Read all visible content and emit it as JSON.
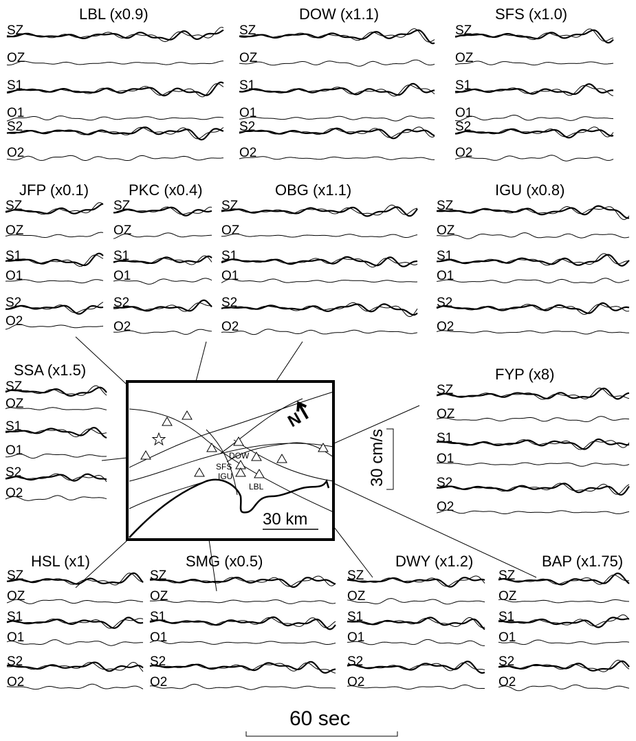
{
  "panels": [
    {
      "id": "LBL",
      "title": "LBL (x0.9)",
      "channels": [
        "SZ",
        "OZ",
        "S1",
        "O1",
        "S2",
        "O2"
      ]
    },
    {
      "id": "DOW",
      "title": "DOW (x1.1)",
      "channels": [
        "SZ",
        "OZ",
        "S1",
        "O1",
        "S2",
        "O2"
      ]
    },
    {
      "id": "SFS",
      "title": "SFS (x1.0)",
      "channels": [
        "SZ",
        "OZ",
        "S1",
        "O1",
        "S2",
        "O2"
      ]
    },
    {
      "id": "JFP",
      "title": "JFP (x0.1)",
      "channels": [
        "SZ",
        "OZ",
        "S1",
        "O1",
        "S2",
        "O2"
      ]
    },
    {
      "id": "PKC",
      "title": "PKC (x0.4)",
      "channels": [
        "SZ",
        "OZ",
        "S1",
        "O1",
        "S2",
        "O2"
      ]
    },
    {
      "id": "OBG",
      "title": "OBG (x1.1)",
      "channels": [
        "SZ",
        "OZ",
        "S1",
        "O1",
        "S2",
        "O2"
      ]
    },
    {
      "id": "IGU",
      "title": "IGU (x0.8)",
      "channels": [
        "SZ",
        "OZ",
        "S1",
        "O1",
        "S2",
        "O2"
      ]
    },
    {
      "id": "SSA",
      "title": "SSA (x1.5)",
      "channels": [
        "SZ",
        "OZ",
        "S1",
        "O1",
        "S2",
        "O2"
      ]
    },
    {
      "id": "FYP",
      "title": "FYP (x8)",
      "channels": [
        "SZ",
        "OZ",
        "S1",
        "O1",
        "S2",
        "O2"
      ]
    },
    {
      "id": "HSL",
      "title": "HSL (x1)",
      "channels": [
        "SZ",
        "OZ",
        "S1",
        "O1",
        "S2",
        "O2"
      ]
    },
    {
      "id": "SMG",
      "title": "SMG (x0.5)",
      "channels": [
        "SZ",
        "OZ",
        "S1",
        "O1",
        "S2",
        "O2"
      ]
    },
    {
      "id": "DWY",
      "title": "DWY (x1.2)",
      "channels": [
        "SZ",
        "OZ",
        "S1",
        "O1",
        "S2",
        "O2"
      ]
    },
    {
      "id": "BAP",
      "title": "BAP (x1.75)",
      "channels": [
        "SZ",
        "OZ",
        "S1",
        "O1",
        "S2",
        "O2"
      ]
    }
  ],
  "map": {
    "north_label": "N",
    "station_labels": [
      "DOW",
      "SFS",
      "IGU",
      "LBL"
    ],
    "distance_scale_label": "30 km"
  },
  "amplitude_scale_label": "30 cm/s",
  "time_scale_label": "60 sec"
}
